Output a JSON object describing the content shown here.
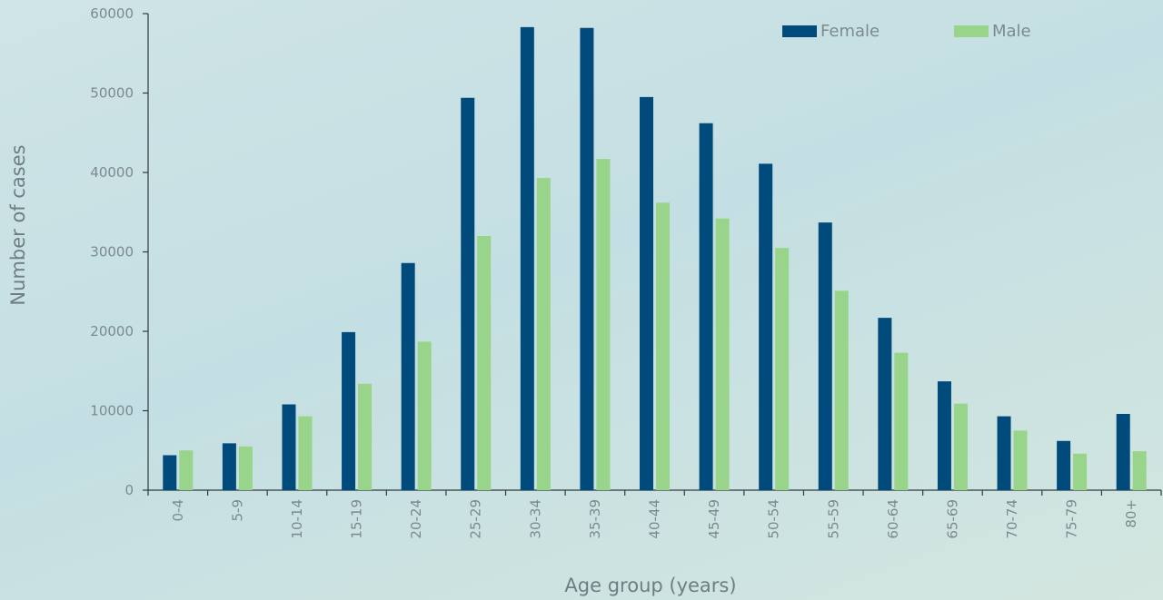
{
  "chart_data": {
    "type": "bar",
    "title": "",
    "xlabel": "Age group (years)",
    "ylabel": "Number of cases",
    "ylim": [
      0,
      60000
    ],
    "yticks": [
      "0",
      "10000",
      "20000",
      "30000",
      "40000",
      "50000",
      "60000"
    ],
    "grid": false,
    "legend_position": "top-right",
    "categories": [
      "0-4",
      "5-9",
      "10-14",
      "15-19",
      "20-24",
      "25-29",
      "30-34",
      "35-39",
      "40-44",
      "45-49",
      "50-54",
      "55-59",
      "60-64",
      "65-69",
      "70-74",
      "75-79",
      "80+"
    ],
    "series": [
      {
        "name": "Female",
        "color": "#004a7c",
        "values": [
          4400,
          5900,
          10800,
          19900,
          28600,
          49400,
          58300,
          58200,
          49500,
          46200,
          41100,
          33700,
          21700,
          13700,
          9300,
          6200,
          9600
        ]
      },
      {
        "name": "Male",
        "color": "#98d48a",
        "values": [
          5000,
          5500,
          9300,
          13400,
          18700,
          32000,
          39300,
          41700,
          36200,
          34200,
          30500,
          25100,
          17300,
          10900,
          7500,
          4600,
          4900
        ]
      }
    ]
  }
}
